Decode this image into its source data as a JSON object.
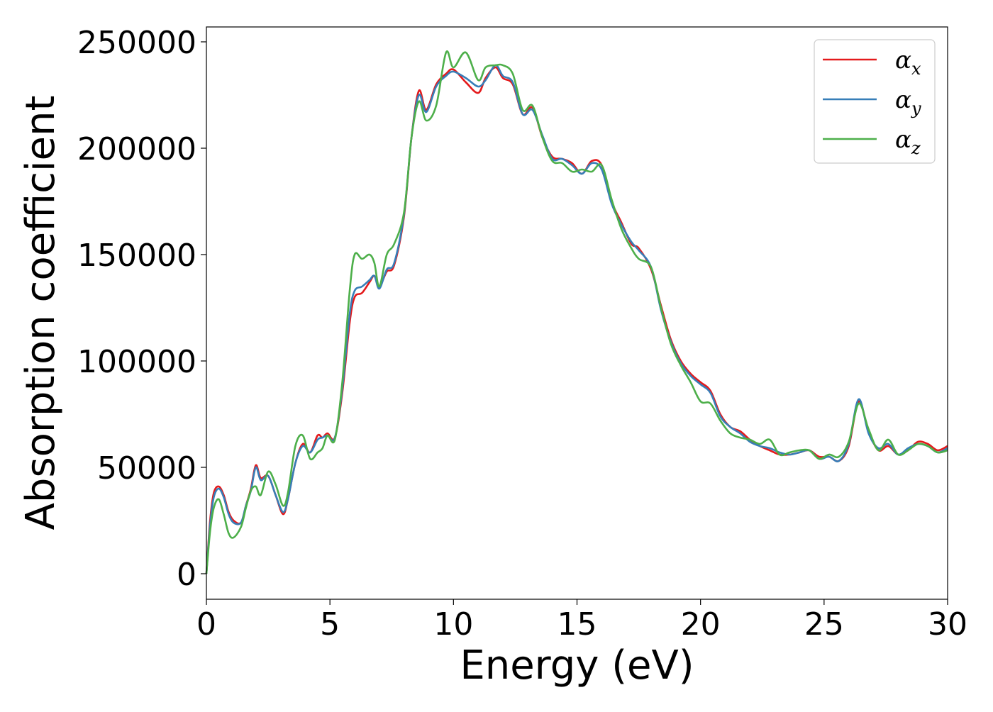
{
  "chart_data": {
    "type": "line",
    "title": "",
    "xlabel": "Energy (eV)",
    "ylabel": "Absorption coefficient",
    "xlim": [
      0,
      30
    ],
    "ylim": [
      -12000,
      257000
    ],
    "xticks": [
      0,
      5,
      10,
      15,
      20,
      25,
      30
    ],
    "xtick_labels": [
      "0",
      "5",
      "10",
      "15",
      "20",
      "25",
      "30"
    ],
    "yticks": [
      0,
      50000,
      100000,
      150000,
      200000,
      250000
    ],
    "ytick_labels": [
      "0",
      "50000",
      "100000",
      "150000",
      "200000",
      "250000"
    ],
    "grid": false,
    "legend_position": "top-right",
    "series": [
      {
        "name": "αx",
        "legend_symbol": "α",
        "legend_sub": "x",
        "color": "#e41a1c",
        "points": [
          [
            0,
            0
          ],
          [
            0.15,
            25000
          ],
          [
            0.3,
            38000
          ],
          [
            0.5,
            41000
          ],
          [
            0.7,
            37000
          ],
          [
            0.9,
            29000
          ],
          [
            1.1,
            25000
          ],
          [
            1.4,
            24000
          ],
          [
            1.6,
            32000
          ],
          [
            1.8,
            40000
          ],
          [
            2.0,
            51000
          ],
          [
            2.2,
            45000
          ],
          [
            2.5,
            46000
          ],
          [
            2.8,
            37000
          ],
          [
            3.1,
            28000
          ],
          [
            3.3,
            35000
          ],
          [
            3.6,
            52000
          ],
          [
            3.9,
            61000
          ],
          [
            4.2,
            57000
          ],
          [
            4.5,
            65000
          ],
          [
            4.7,
            64000
          ],
          [
            4.9,
            66000
          ],
          [
            5.2,
            64000
          ],
          [
            5.5,
            85000
          ],
          [
            5.8,
            118000
          ],
          [
            6.0,
            130000
          ],
          [
            6.3,
            132000
          ],
          [
            6.6,
            137000
          ],
          [
            6.8,
            140000
          ],
          [
            7.0,
            135000
          ],
          [
            7.3,
            142000
          ],
          [
            7.6,
            145000
          ],
          [
            8.0,
            168000
          ],
          [
            8.3,
            205000
          ],
          [
            8.6,
            227000
          ],
          [
            8.9,
            218000
          ],
          [
            9.3,
            230000
          ],
          [
            9.7,
            235000
          ],
          [
            10.0,
            237000
          ],
          [
            10.5,
            231000
          ],
          [
            11.0,
            226000
          ],
          [
            11.3,
            233000
          ],
          [
            11.7,
            238000
          ],
          [
            12.0,
            233000
          ],
          [
            12.4,
            230000
          ],
          [
            12.8,
            216000
          ],
          [
            13.2,
            219000
          ],
          [
            13.6,
            205000
          ],
          [
            14.0,
            196000
          ],
          [
            14.4,
            195000
          ],
          [
            14.8,
            193000
          ],
          [
            15.2,
            188000
          ],
          [
            15.6,
            194000
          ],
          [
            16.0,
            192000
          ],
          [
            16.4,
            175000
          ],
          [
            16.8,
            165000
          ],
          [
            17.2,
            155000
          ],
          [
            17.5,
            153000
          ],
          [
            18.0,
            143000
          ],
          [
            18.4,
            126000
          ],
          [
            18.8,
            110000
          ],
          [
            19.2,
            100000
          ],
          [
            19.6,
            94000
          ],
          [
            20.0,
            90000
          ],
          [
            20.4,
            86000
          ],
          [
            20.8,
            75000
          ],
          [
            21.2,
            69000
          ],
          [
            21.6,
            67000
          ],
          [
            22.0,
            63000
          ],
          [
            22.4,
            60000
          ],
          [
            22.8,
            58000
          ],
          [
            23.2,
            56000
          ],
          [
            23.6,
            56000
          ],
          [
            24.0,
            57000
          ],
          [
            24.4,
            58000
          ],
          [
            24.8,
            55000
          ],
          [
            25.2,
            55000
          ],
          [
            25.6,
            53000
          ],
          [
            26.0,
            60000
          ],
          [
            26.4,
            81000
          ],
          [
            26.8,
            67000
          ],
          [
            27.2,
            58000
          ],
          [
            27.6,
            60000
          ],
          [
            28.0,
            56000
          ],
          [
            28.4,
            58000
          ],
          [
            28.8,
            62000
          ],
          [
            29.2,
            61000
          ],
          [
            29.6,
            58000
          ],
          [
            30.0,
            60000
          ]
        ]
      },
      {
        "name": "αy",
        "legend_symbol": "α",
        "legend_sub": "y",
        "color": "#377eb8",
        "points": [
          [
            0,
            0
          ],
          [
            0.15,
            23000
          ],
          [
            0.3,
            36000
          ],
          [
            0.5,
            40000
          ],
          [
            0.7,
            36000
          ],
          [
            0.9,
            28000
          ],
          [
            1.1,
            24000
          ],
          [
            1.4,
            24000
          ],
          [
            1.6,
            32000
          ],
          [
            1.8,
            39000
          ],
          [
            2.0,
            50000
          ],
          [
            2.2,
            44000
          ],
          [
            2.5,
            46000
          ],
          [
            2.8,
            37000
          ],
          [
            3.1,
            29000
          ],
          [
            3.3,
            35000
          ],
          [
            3.6,
            52000
          ],
          [
            3.9,
            60000
          ],
          [
            4.2,
            57000
          ],
          [
            4.5,
            63000
          ],
          [
            4.7,
            64000
          ],
          [
            4.9,
            65000
          ],
          [
            5.2,
            64000
          ],
          [
            5.5,
            87000
          ],
          [
            5.8,
            122000
          ],
          [
            6.0,
            133000
          ],
          [
            6.3,
            135000
          ],
          [
            6.6,
            138000
          ],
          [
            6.8,
            140000
          ],
          [
            7.0,
            134000
          ],
          [
            7.3,
            143000
          ],
          [
            7.6,
            146000
          ],
          [
            8.0,
            169000
          ],
          [
            8.3,
            205000
          ],
          [
            8.6,
            225000
          ],
          [
            8.9,
            217000
          ],
          [
            9.3,
            229000
          ],
          [
            9.7,
            234000
          ],
          [
            10.0,
            236000
          ],
          [
            10.5,
            233000
          ],
          [
            11.0,
            229000
          ],
          [
            11.3,
            232000
          ],
          [
            11.7,
            239000
          ],
          [
            12.0,
            234000
          ],
          [
            12.4,
            231000
          ],
          [
            12.8,
            216000
          ],
          [
            13.2,
            218000
          ],
          [
            13.6,
            206000
          ],
          [
            14.0,
            195000
          ],
          [
            14.4,
            195000
          ],
          [
            14.8,
            192000
          ],
          [
            15.2,
            188000
          ],
          [
            15.6,
            193000
          ],
          [
            16.0,
            190000
          ],
          [
            16.4,
            174000
          ],
          [
            16.8,
            164000
          ],
          [
            17.2,
            156000
          ],
          [
            17.5,
            152000
          ],
          [
            18.0,
            144000
          ],
          [
            18.4,
            124000
          ],
          [
            18.8,
            109000
          ],
          [
            19.2,
            99000
          ],
          [
            19.6,
            93000
          ],
          [
            20.0,
            89000
          ],
          [
            20.4,
            85000
          ],
          [
            20.8,
            74000
          ],
          [
            21.2,
            69000
          ],
          [
            21.6,
            66000
          ],
          [
            22.0,
            62000
          ],
          [
            22.4,
            60000
          ],
          [
            22.8,
            59000
          ],
          [
            23.2,
            57000
          ],
          [
            23.6,
            56000
          ],
          [
            24.0,
            57000
          ],
          [
            24.4,
            58000
          ],
          [
            24.8,
            54000
          ],
          [
            25.2,
            55000
          ],
          [
            25.6,
            53000
          ],
          [
            26.0,
            61000
          ],
          [
            26.4,
            82000
          ],
          [
            26.8,
            66000
          ],
          [
            27.2,
            59000
          ],
          [
            27.6,
            61000
          ],
          [
            28.0,
            56000
          ],
          [
            28.4,
            59000
          ],
          [
            28.8,
            61000
          ],
          [
            29.2,
            60000
          ],
          [
            29.6,
            57000
          ],
          [
            30.0,
            59000
          ]
        ]
      },
      {
        "name": "αz",
        "legend_symbol": "α",
        "legend_sub": "z",
        "color": "#4daf4a",
        "points": [
          [
            0,
            0
          ],
          [
            0.15,
            20000
          ],
          [
            0.3,
            31000
          ],
          [
            0.5,
            35000
          ],
          [
            0.7,
            28000
          ],
          [
            0.9,
            19000
          ],
          [
            1.1,
            17000
          ],
          [
            1.4,
            22000
          ],
          [
            1.6,
            31000
          ],
          [
            1.8,
            39000
          ],
          [
            2.0,
            41000
          ],
          [
            2.2,
            37000
          ],
          [
            2.5,
            48000
          ],
          [
            2.8,
            42000
          ],
          [
            3.1,
            32000
          ],
          [
            3.3,
            38000
          ],
          [
            3.6,
            60000
          ],
          [
            3.9,
            65000
          ],
          [
            4.2,
            54000
          ],
          [
            4.5,
            57000
          ],
          [
            4.7,
            59000
          ],
          [
            4.9,
            65000
          ],
          [
            5.2,
            63000
          ],
          [
            5.5,
            90000
          ],
          [
            5.8,
            133000
          ],
          [
            6.0,
            150000
          ],
          [
            6.3,
            148000
          ],
          [
            6.6,
            150000
          ],
          [
            6.8,
            146000
          ],
          [
            7.0,
            135000
          ],
          [
            7.3,
            150000
          ],
          [
            7.6,
            155000
          ],
          [
            8.0,
            170000
          ],
          [
            8.3,
            205000
          ],
          [
            8.6,
            222000
          ],
          [
            8.9,
            213000
          ],
          [
            9.3,
            220000
          ],
          [
            9.7,
            245000
          ],
          [
            10.0,
            238000
          ],
          [
            10.5,
            245000
          ],
          [
            11.0,
            232000
          ],
          [
            11.3,
            238000
          ],
          [
            11.7,
            239000
          ],
          [
            12.0,
            239000
          ],
          [
            12.4,
            235000
          ],
          [
            12.8,
            218000
          ],
          [
            13.2,
            220000
          ],
          [
            13.6,
            205000
          ],
          [
            14.0,
            194000
          ],
          [
            14.4,
            193000
          ],
          [
            14.8,
            189000
          ],
          [
            15.2,
            190000
          ],
          [
            15.6,
            189000
          ],
          [
            16.0,
            192000
          ],
          [
            16.4,
            176000
          ],
          [
            16.8,
            162000
          ],
          [
            17.2,
            153000
          ],
          [
            17.5,
            148000
          ],
          [
            18.0,
            144000
          ],
          [
            18.4,
            125000
          ],
          [
            18.8,
            108000
          ],
          [
            19.2,
            98000
          ],
          [
            19.6,
            90000
          ],
          [
            20.0,
            81000
          ],
          [
            20.4,
            80000
          ],
          [
            20.8,
            72000
          ],
          [
            21.2,
            66000
          ],
          [
            21.6,
            64000
          ],
          [
            22.0,
            63000
          ],
          [
            22.4,
            61000
          ],
          [
            22.8,
            63000
          ],
          [
            23.2,
            56000
          ],
          [
            23.6,
            57000
          ],
          [
            24.0,
            58000
          ],
          [
            24.4,
            58000
          ],
          [
            24.8,
            54000
          ],
          [
            25.2,
            56000
          ],
          [
            25.6,
            55000
          ],
          [
            26.0,
            62000
          ],
          [
            26.4,
            80000
          ],
          [
            26.8,
            68000
          ],
          [
            27.2,
            58000
          ],
          [
            27.6,
            63000
          ],
          [
            28.0,
            56000
          ],
          [
            28.4,
            58000
          ],
          [
            28.8,
            61000
          ],
          [
            29.2,
            60000
          ],
          [
            29.6,
            57000
          ],
          [
            30.0,
            58000
          ]
        ]
      }
    ]
  }
}
